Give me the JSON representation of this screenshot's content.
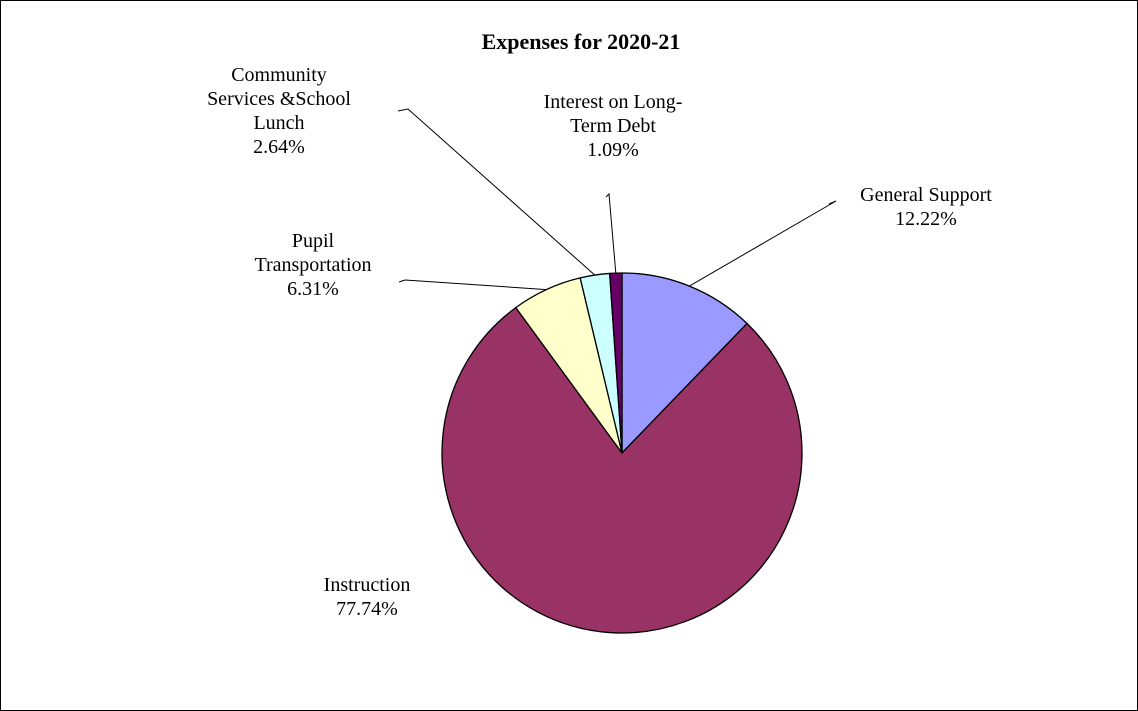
{
  "chart_data": {
    "type": "pie",
    "title": "Expenses for 2020-21",
    "slices": [
      {
        "label_lines": [
          "General Support",
          "12.22%"
        ],
        "name": "General Support",
        "value": 12.22,
        "color": "#9999ff"
      },
      {
        "label_lines": [
          "Instruction",
          "77.74%"
        ],
        "name": "Instruction",
        "value": 77.74,
        "color": "#993366"
      },
      {
        "label_lines": [
          "Pupil",
          "Transportation",
          "6.31%"
        ],
        "name": "Pupil Transportation",
        "value": 6.31,
        "color": "#ffffcc"
      },
      {
        "label_lines": [
          "Community",
          "Services &School",
          "Lunch",
          "2.64%"
        ],
        "name": "Community Services &School Lunch",
        "value": 2.64,
        "color": "#ccffff"
      },
      {
        "label_lines": [
          "Interest on Long-",
          "Term Debt",
          "1.09%"
        ],
        "name": "Interest on Long-Term Debt",
        "value": 1.09,
        "color": "#660066"
      }
    ],
    "start_angle": "12 o'clock",
    "direction": "clockwise",
    "legend": "none"
  }
}
